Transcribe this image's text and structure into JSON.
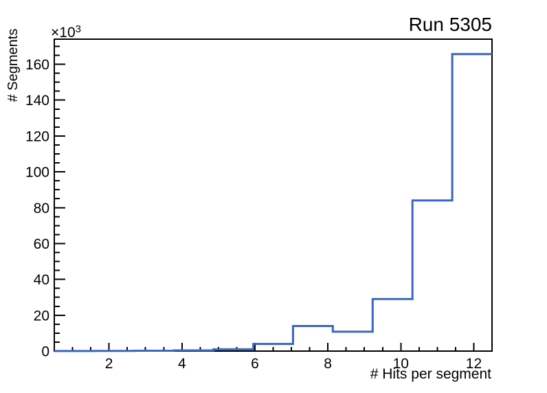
{
  "chart_data": {
    "type": "histogram-step",
    "title": "Run 5305",
    "xlabel": "# Hits per segment",
    "ylabel": "# Segments",
    "y_axis_multiplier": {
      "base": "×10",
      "exponent": "3"
    },
    "xlim": [
      0.5,
      12.5
    ],
    "ylim": [
      0,
      174000
    ],
    "n_bins": 11,
    "bin_edges": [
      0.5,
      1.591,
      2.682,
      3.773,
      4.864,
      5.955,
      7.045,
      8.136,
      9.227,
      10.318,
      11.409,
      12.5
    ],
    "counts": [
      50,
      100,
      200,
      400,
      1000,
      4000,
      14000,
      10800,
      29000,
      84000,
      165700
    ],
    "x_major_ticks": [
      2,
      4,
      6,
      8,
      10,
      12
    ],
    "x_minor_step": 0.5,
    "y_major_ticks": [
      0,
      20000,
      40000,
      60000,
      80000,
      100000,
      120000,
      140000,
      160000
    ],
    "y_tick_labels": [
      "0",
      "20",
      "40",
      "60",
      "80",
      "100",
      "120",
      "140",
      "160"
    ],
    "y_minor_step": 5000,
    "grid": false,
    "legend": false,
    "line_color": "#3a65c2",
    "axis_color": "#000000",
    "background_color": "#ffffff"
  }
}
